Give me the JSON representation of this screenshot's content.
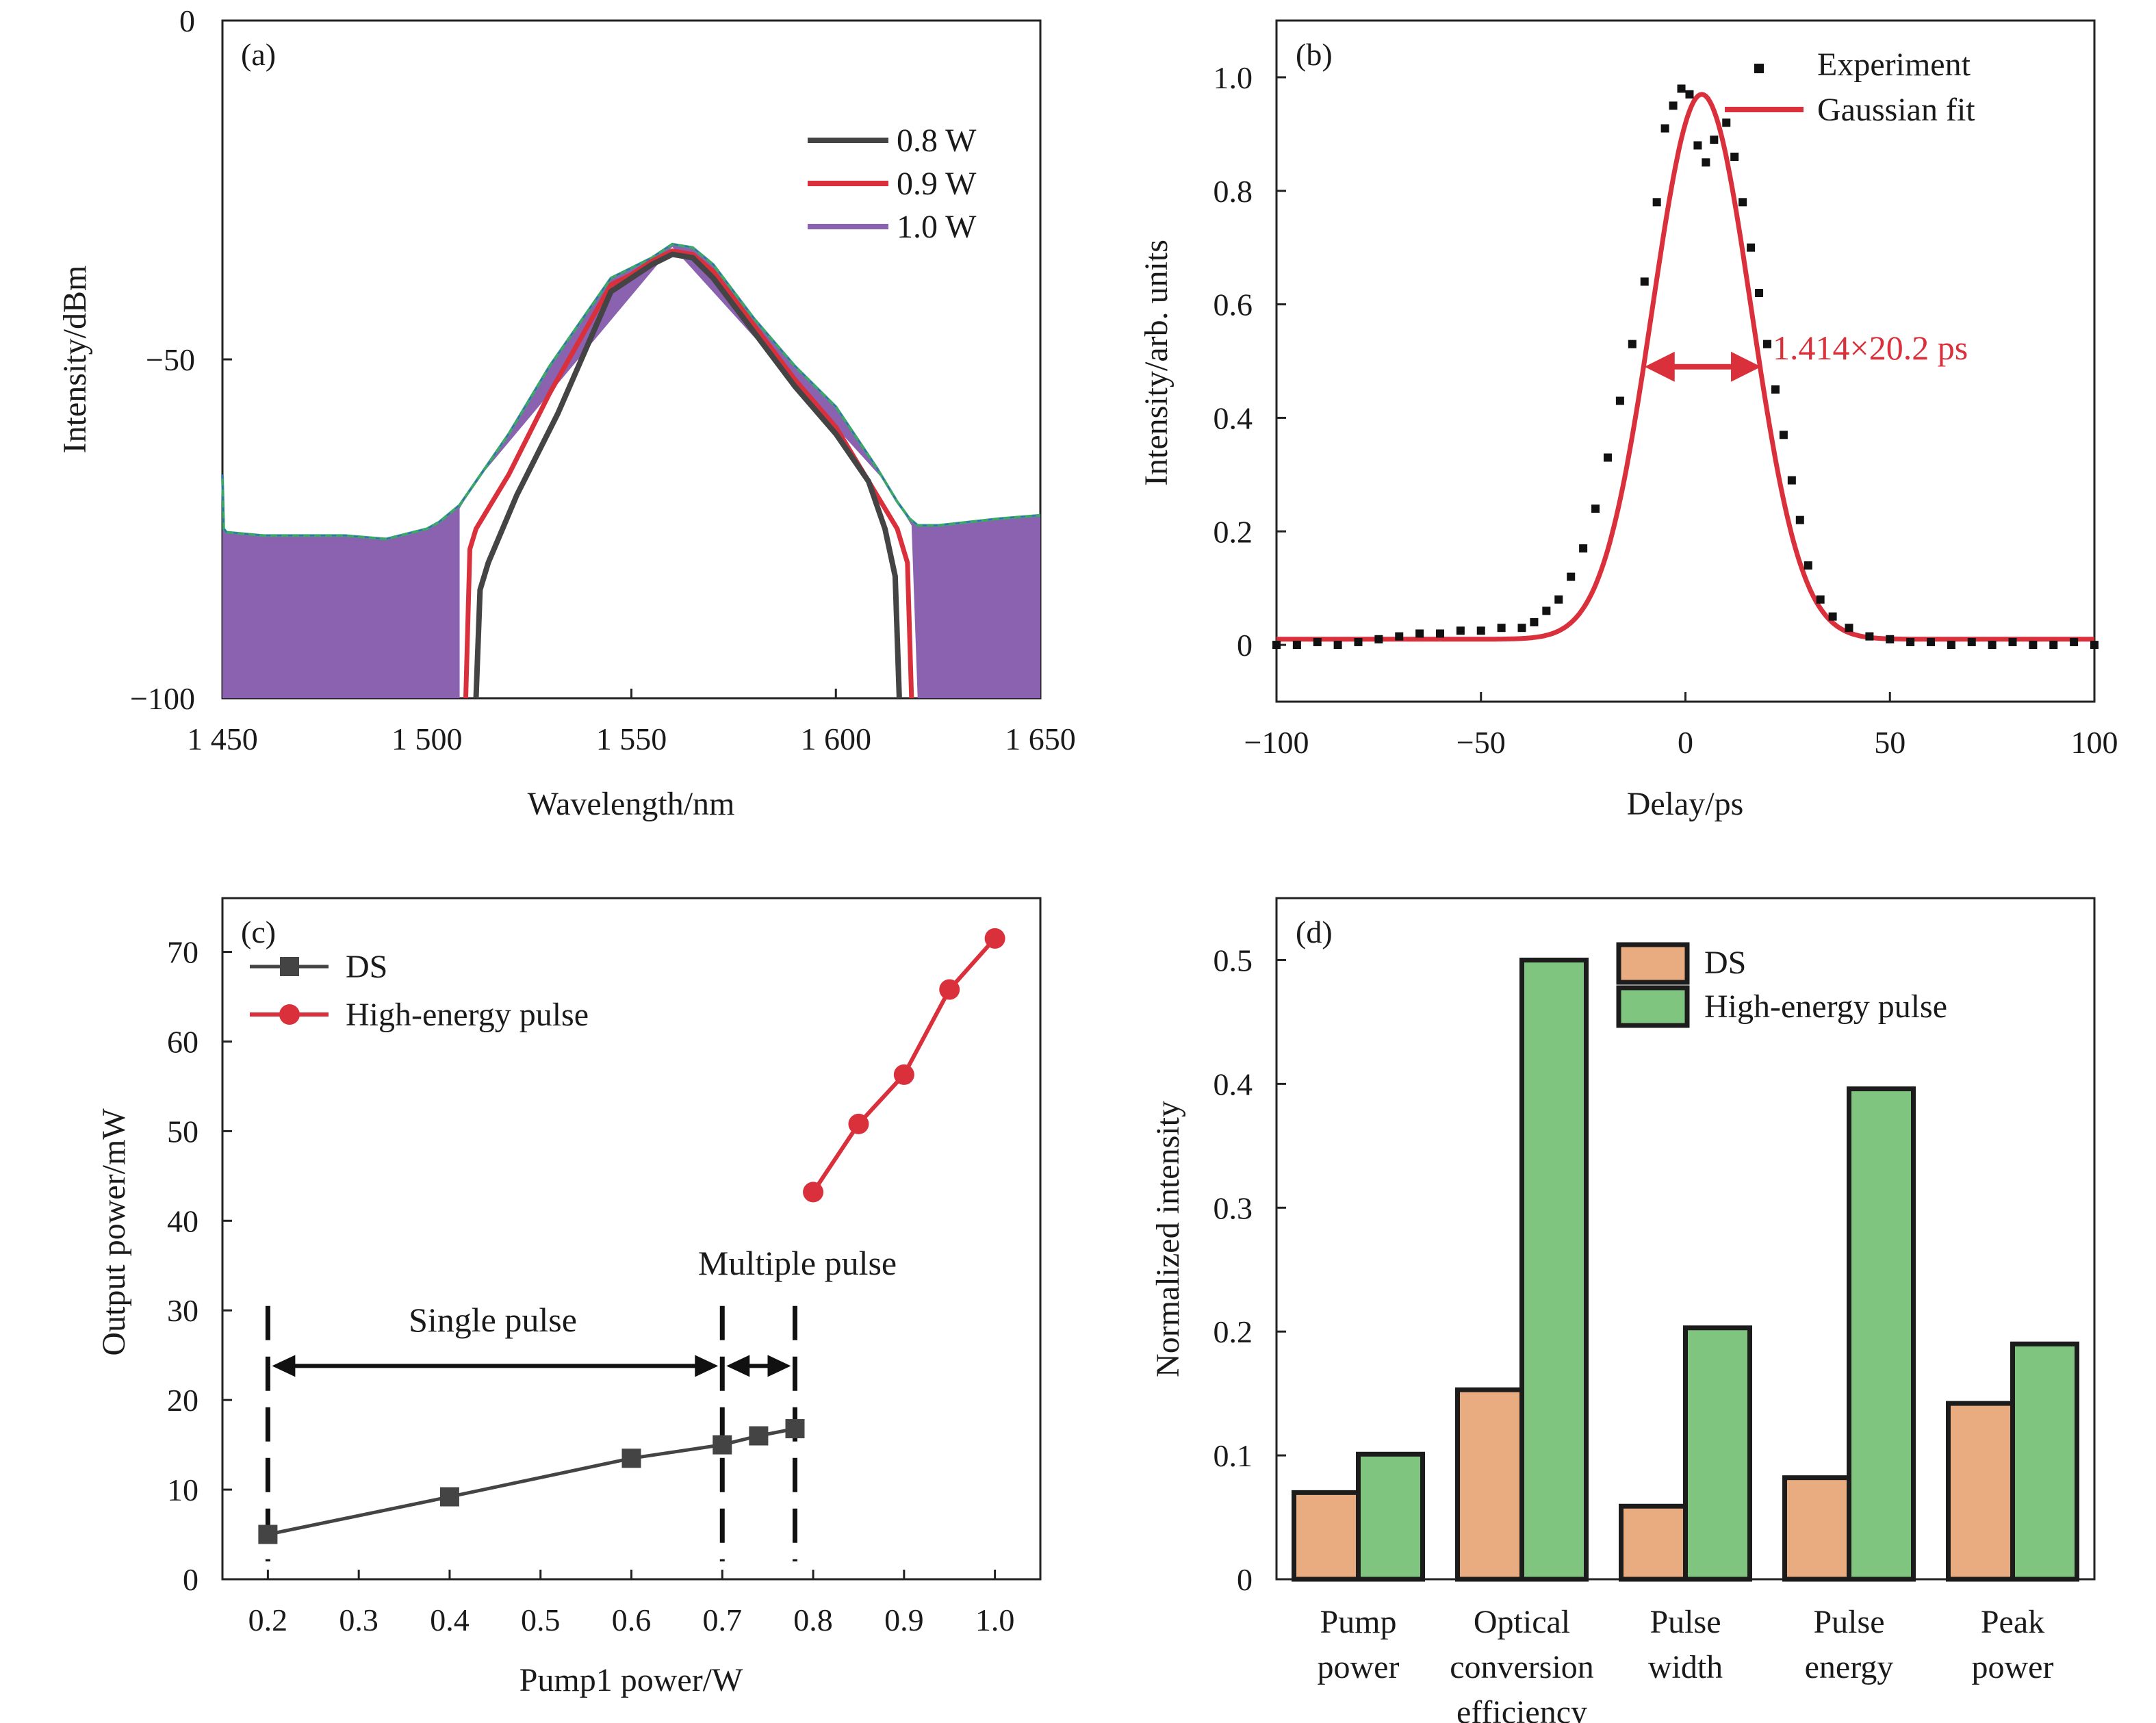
{
  "colors": {
    "dark": "#444444",
    "red": "#d9303b",
    "purple": "#8a62b0",
    "green_edge": "#3aa86a",
    "blue_edge": "#3a63c8",
    "orange": "#e8ac80",
    "green_bar": "#7fc47f",
    "black": "#111111"
  },
  "chart_data": [
    {
      "panel": "(a)",
      "type": "line",
      "title": "",
      "xlabel": "Wavelength/nm",
      "ylabel": "Intensity/dBm",
      "xlim": [
        1450,
        1650
      ],
      "ylim": [
        -100,
        0
      ],
      "xticks": [
        1450,
        1500,
        1550,
        1600,
        1650
      ],
      "xtick_labels": [
        "1 450",
        "1 500",
        "1 550",
        "1 600",
        "1 650"
      ],
      "yticks": [
        0,
        -50,
        -100
      ],
      "ytick_labels": [
        "0",
        "−50",
        "−100"
      ],
      "legend": [
        "0.8 W",
        "0.9 W",
        "1.0 W"
      ],
      "legend_position": "top-right",
      "series": [
        {
          "name": "1.0 W",
          "x": [
            1450,
            1450.3,
            1451,
            1460,
            1480,
            1490,
            1500,
            1503,
            1508,
            1512,
            1520,
            1530,
            1545,
            1550,
            1555,
            1560,
            1565,
            1570,
            1580,
            1590,
            1600,
            1610,
            1615,
            1618,
            1620,
            1625,
            1640,
            1650
          ],
          "y": [
            -67,
            -75,
            -75.5,
            -76,
            -76,
            -76.5,
            -75,
            -74,
            -71.5,
            -68,
            -61,
            -51,
            -38,
            -36.5,
            -35,
            -33,
            -33.5,
            -36,
            -44,
            -51,
            -57,
            -66,
            -71,
            -73.5,
            -74.5,
            -74.5,
            -73.5,
            -73
          ]
        },
        {
          "name": "0.9 W",
          "x": [
            1509.5,
            1510.5,
            1512,
            1520,
            1530,
            1545,
            1550,
            1555,
            1560,
            1565,
            1570,
            1580,
            1590,
            1600,
            1610,
            1615,
            1617.5,
            1618.5
          ],
          "y": [
            -100,
            -78,
            -75,
            -67,
            -55,
            -39,
            -37.5,
            -35.5,
            -34,
            -34.5,
            -37,
            -45,
            -53,
            -60,
            -70,
            -75,
            -80,
            -100
          ]
        },
        {
          "name": "0.8 W",
          "x": [
            1512,
            1513,
            1515,
            1522,
            1532,
            1545,
            1550,
            1555,
            1560,
            1565,
            1570,
            1580,
            1590,
            1600,
            1608,
            1612,
            1614.5,
            1615.5
          ],
          "y": [
            -100,
            -84,
            -80,
            -70,
            -58,
            -40,
            -38,
            -36,
            -34.5,
            -35,
            -38,
            -46,
            -54,
            -61,
            -68,
            -75,
            -82,
            -100
          ]
        }
      ]
    },
    {
      "panel": "(b)",
      "type": "line",
      "title": "",
      "xlabel": "Delay/ps",
      "ylabel": "Intensity/arb. units",
      "xlim": [
        -100,
        100
      ],
      "ylim": [
        -0.1,
        1.1
      ],
      "xticks": [
        -100,
        -50,
        0,
        50,
        100
      ],
      "xtick_labels": [
        "−100",
        "−50",
        "0",
        "50",
        "100"
      ],
      "yticks": [
        0,
        0.2,
        0.4,
        0.6,
        0.8,
        1.0
      ],
      "ytick_labels": [
        "0",
        "0.2",
        "0.4",
        "0.6",
        "0.8",
        "1.0"
      ],
      "legend": [
        "Experiment",
        "Gaussian fit"
      ],
      "legend_position": "top-right",
      "annotation": "1.414×20.2 ps",
      "annotation_range": [
        -10,
        18.5
      ],
      "annotation_level": 0.49,
      "fit": {
        "amplitude": 0.97,
        "center": 4,
        "sigma": 12.1,
        "baseline": 0.01
      },
      "series": [
        {
          "name": "Gaussian fit",
          "x": [
            -100,
            -80,
            -60,
            -50,
            -40,
            -35,
            -30,
            -25,
            -20,
            -15,
            -10,
            -5,
            0,
            4,
            8,
            13,
            18,
            23,
            28,
            33,
            38,
            45,
            55,
            70,
            100
          ],
          "y": [
            0.01,
            0.01,
            0.015,
            0.02,
            0.025,
            0.03,
            0.05,
            0.1,
            0.2,
            0.35,
            0.51,
            0.73,
            0.92,
            0.97,
            0.92,
            0.73,
            0.5,
            0.26,
            0.1,
            0.03,
            0.01,
            0.01,
            0.01,
            0.01,
            0.01
          ]
        },
        {
          "name": "Experiment",
          "x": [
            -100,
            -95,
            -90,
            -85,
            -80,
            -75,
            -70,
            -65,
            -60,
            -55,
            -50,
            -45,
            -40,
            -37,
            -34,
            -31,
            -28,
            -25,
            -22,
            -19,
            -16,
            -13,
            -10,
            -7,
            -5,
            -3,
            -1,
            1,
            3,
            5,
            7,
            10,
            12,
            14,
            16,
            18,
            20,
            22,
            24,
            26,
            28,
            30,
            33,
            36,
            40,
            45,
            50,
            55,
            60,
            65,
            70,
            75,
            80,
            85,
            90,
            95,
            100
          ],
          "y": [
            0.0,
            0.0,
            0.005,
            0.0,
            0.005,
            0.01,
            0.015,
            0.02,
            0.02,
            0.025,
            0.025,
            0.03,
            0.03,
            0.04,
            0.06,
            0.08,
            0.12,
            0.17,
            0.24,
            0.33,
            0.43,
            0.53,
            0.64,
            0.78,
            0.91,
            0.95,
            0.98,
            0.97,
            0.88,
            0.85,
            0.89,
            0.92,
            0.86,
            0.78,
            0.7,
            0.62,
            0.53,
            0.45,
            0.37,
            0.29,
            0.22,
            0.14,
            0.08,
            0.05,
            0.03,
            0.015,
            0.01,
            0.005,
            0.005,
            0.0,
            0.005,
            0.0,
            0.005,
            0.0,
            0.0,
            0.005,
            0.0
          ]
        }
      ]
    },
    {
      "panel": "(c)",
      "type": "line",
      "title": "",
      "xlabel": "Pump1 power/W",
      "ylabel": "Output power/mW",
      "xlim": [
        0.15,
        1.05
      ],
      "ylim": [
        0,
        76
      ],
      "xticks": [
        0.2,
        0.3,
        0.4,
        0.5,
        0.6,
        0.7,
        0.8,
        0.9,
        1.0
      ],
      "xtick_labels": [
        "0.2",
        "0.3",
        "0.4",
        "0.5",
        "0.6",
        "0.7",
        "0.8",
        "0.9",
        "1.0"
      ],
      "yticks": [
        0,
        10,
        20,
        30,
        40,
        50,
        60,
        70
      ],
      "ytick_labels": [
        "0",
        "10",
        "20",
        "30",
        "40",
        "50",
        "60",
        "70"
      ],
      "legend": [
        "DS",
        "High-energy pulse"
      ],
      "legend_position": "top-left",
      "series": [
        {
          "name": "DS",
          "marker": "square",
          "x": [
            0.2,
            0.4,
            0.6,
            0.7,
            0.74,
            0.78
          ],
          "y": [
            5,
            9.2,
            13.5,
            15,
            16,
            16.8
          ]
        },
        {
          "name": "High-energy pulse",
          "marker": "circle",
          "x": [
            0.8,
            0.85,
            0.9,
            0.95,
            1.0
          ],
          "y": [
            43.2,
            50.8,
            56.3,
            65.8,
            71.5
          ]
        }
      ],
      "regions": [
        {
          "label": "Single pulse",
          "from": 0.2,
          "to": 0.7
        },
        {
          "label": "Multiple pulse",
          "from": 0.7,
          "to": 0.78
        }
      ],
      "dashed_lines_x": [
        0.2,
        0.7,
        0.78
      ]
    },
    {
      "panel": "(d)",
      "type": "bar",
      "title": "",
      "xlabel": "",
      "ylabel": "Normalized intensity",
      "ylim": [
        0,
        0.55
      ],
      "yticks": [
        0,
        0.1,
        0.2,
        0.3,
        0.4,
        0.5
      ],
      "ytick_labels": [
        "0",
        "0.1",
        "0.2",
        "0.3",
        "0.4",
        "0.5"
      ],
      "categories": [
        "Pump power",
        "Optical conversion efficiency",
        "Pulse width",
        "Pulse energy",
        "Peak power"
      ],
      "category_lines": [
        [
          "Pump",
          "power"
        ],
        [
          "Optical",
          "conversion",
          "efficiency"
        ],
        [
          "Pulse",
          "width"
        ],
        [
          "Pulse",
          "energy"
        ],
        [
          "Peak",
          "power"
        ]
      ],
      "legend": [
        "DS",
        "High-energy pulse"
      ],
      "legend_position": "top-center",
      "series": [
        {
          "name": "DS",
          "values": [
            0.07,
            0.153,
            0.059,
            0.082,
            0.142
          ]
        },
        {
          "name": "High-energy pulse",
          "values": [
            0.101,
            0.5,
            0.203,
            0.396,
            0.19
          ]
        }
      ]
    }
  ]
}
